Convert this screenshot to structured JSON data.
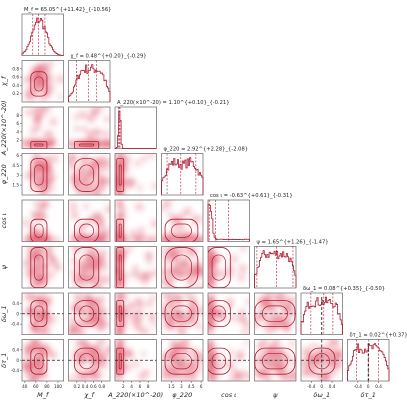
{
  "chart_data": {
    "type": "corner",
    "params": [
      {
        "key": "M_f",
        "label": "M_f",
        "title": "M_f = 65.05^{+11.42}_{-10.56}",
        "median": 65.05,
        "err_plus": 11.42,
        "err_minus": 10.56,
        "range": [
          35,
          110
        ],
        "ticks": [
          40,
          60,
          80,
          100
        ]
      },
      {
        "key": "chi_f",
        "label": "χ_f",
        "title": "χ_f = 0.48^{+0.20}_{-0.29}",
        "median": 0.48,
        "err_plus": 0.2,
        "err_minus": 0.29,
        "range": [
          0,
          1
        ],
        "ticks": [
          0.2,
          0.4,
          0.6,
          0.8
        ]
      },
      {
        "key": "A_220",
        "label": "A_220(×10^-20)",
        "title": "A_220(×10^-20) = 1.10^{+0.10}_{-0.21}",
        "median": 1.1,
        "err_plus": 0.1,
        "err_minus": 0.21,
        "range": [
          0,
          10
        ],
        "ticks": [
          2,
          4,
          6,
          8
        ]
      },
      {
        "key": "phi_220",
        "label": "φ_220",
        "title": "φ_220 = 2.92^{+2.28}_{-2.08}",
        "median": 2.92,
        "err_plus": 2.28,
        "err_minus": 2.08,
        "range": [
          0,
          6.28
        ],
        "ticks": [
          1.5,
          3.0,
          4.5,
          6.0
        ]
      },
      {
        "key": "cos_iota",
        "label": "cos ι",
        "title": "cos ι = -0.63^{+0.61}_{-0.31}",
        "median": -0.63,
        "err_plus": 0.61,
        "err_minus": 0.31,
        "range": [
          -1,
          1
        ],
        "ticks": []
      },
      {
        "key": "psi",
        "label": "ψ",
        "title": "ψ = 1.65^{+1.26}_{-1.47}",
        "median": 1.65,
        "err_plus": 1.26,
        "err_minus": 1.47,
        "range": [
          0,
          3.14
        ],
        "ticks": []
      },
      {
        "key": "delta_omega_1",
        "label": "δω_1",
        "title": "δω_1 = 0.08^{+0.35}_{-0.50}",
        "median": 0.08,
        "err_plus": 0.35,
        "err_minus": 0.5,
        "range": [
          -0.8,
          0.8
        ],
        "ticks": [
          -0.4,
          0.0,
          0.4
        ]
      },
      {
        "key": "delta_tau_1",
        "label": "δτ_1",
        "title": "δτ_1 = 0.02^{+0.37}_{-0.48}",
        "median": 0.02,
        "err_plus": 0.37,
        "err_minus": 0.48,
        "range": [
          -0.8,
          0.8
        ],
        "ticks": [
          -0.4,
          0.0,
          0.4
        ]
      }
    ],
    "hist_shapes": {
      "M_f": "unimodal-bell",
      "chi_f": "broad-plateau",
      "A_220": "narrow-spike",
      "phi_220": "bimodal-flat",
      "cos_iota": "spike-at-low-edge",
      "psi": "broad-flat",
      "delta_omega_1": "broad-flat",
      "delta_tau_1": "broad-flat"
    },
    "truth_lines": {
      "delta_omega_1": 0.0,
      "delta_tau_1": 0.0
    },
    "colors": {
      "density": "#d7304a",
      "contour": "#b0192e",
      "truth": "#222222",
      "frame": "#666666"
    }
  }
}
